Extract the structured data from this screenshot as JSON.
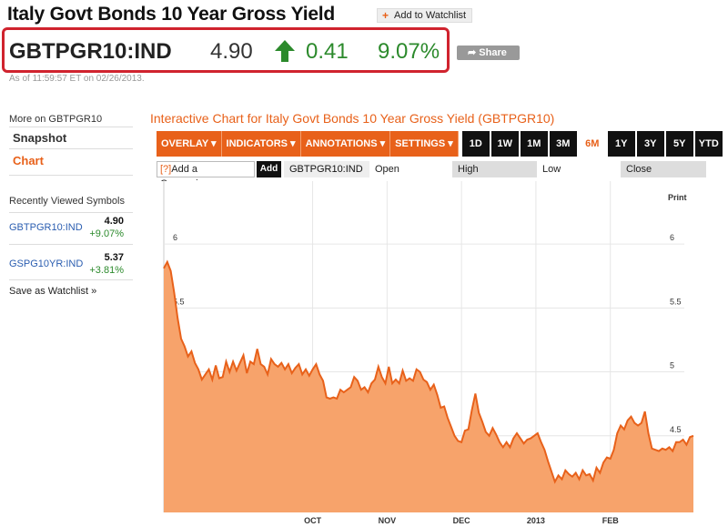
{
  "header": {
    "title": "Italy Govt Bonds 10 Year Gross Yield",
    "watchlist_label": "Add to Watchlist"
  },
  "quote": {
    "ticker": "GBTPGR10:IND",
    "price": "4.90",
    "change": "0.41",
    "percent": "9.07%",
    "share_label": "Share",
    "as_of": "As of 11:59:57 ET on 02/26/2013."
  },
  "sidebar": {
    "more_on": "More on GBTPGR10",
    "items": [
      {
        "label": "Snapshot"
      },
      {
        "label": "Chart"
      }
    ],
    "recent_heading": "Recently Viewed Symbols",
    "recent": [
      {
        "symbol": "GBTPGR10:IND",
        "value": "4.90",
        "change": "+9.07%"
      },
      {
        "symbol": "GSPG10YR:IND",
        "value": "5.37",
        "change": "+3.81%"
      }
    ],
    "save_watchlist": "Save as Watchlist »"
  },
  "chart_panel": {
    "title": "Interactive Chart for Italy Govt Bonds 10 Year Gross Yield (GBTPGR10)",
    "menus": [
      "OVERLAY ▾",
      "INDICATORS ▾",
      "ANNOTATIONS ▾",
      "SETTINGS ▾"
    ],
    "ranges": [
      "1D",
      "1W",
      "1M",
      "3M",
      "6M",
      "1Y",
      "3Y",
      "5Y",
      "YTD"
    ],
    "selected_range": "6M",
    "compare_prefix": "[?]",
    "compare_label": "Add a Comparison",
    "add_label": "Add",
    "symbol": "GBTPGR10:IND",
    "open_label": "Open",
    "high_label": "High",
    "low_label": "Low",
    "close_label": "Close",
    "print_label": "Print"
  },
  "colors": {
    "accent": "#e8611a",
    "up": "#2c8a2c",
    "area_fill": "#f7a36b",
    "highlight": "#d0232e"
  },
  "chart_data": {
    "type": "area",
    "title": "",
    "xlabel": "",
    "ylabel": "",
    "y_ticks": [
      "4.5",
      "5",
      "5.5",
      "6"
    ],
    "ylim": [
      3.9,
      6.4
    ],
    "x_month_labels": [
      "OCT",
      "NOV",
      "DEC",
      "2013",
      "FEB"
    ],
    "x_month_positions": [
      43,
      64.5,
      86,
      107.5,
      129
    ],
    "grid": true,
    "series": [
      {
        "points": [
          [
            0,
            5.81
          ],
          [
            1,
            5.86
          ],
          [
            2,
            5.79
          ],
          [
            3,
            5.62
          ],
          [
            4,
            5.42
          ],
          [
            5,
            5.26
          ],
          [
            6,
            5.2
          ],
          [
            7,
            5.12
          ],
          [
            8,
            5.16
          ],
          [
            9,
            5.07
          ],
          [
            10,
            5.02
          ],
          [
            11,
            4.94
          ],
          [
            12,
            4.98
          ],
          [
            13,
            5.02
          ],
          [
            14,
            4.94
          ],
          [
            15,
            5.05
          ],
          [
            16,
            4.95
          ],
          [
            17,
            4.96
          ],
          [
            18,
            5.08
          ],
          [
            19,
            5.0
          ],
          [
            20,
            5.08
          ],
          [
            21,
            5.01
          ],
          [
            22,
            5.07
          ],
          [
            23,
            5.13
          ],
          [
            24,
            4.99
          ],
          [
            25,
            5.08
          ],
          [
            26,
            5.06
          ],
          [
            27,
            5.18
          ],
          [
            28,
            5.06
          ],
          [
            29,
            5.04
          ],
          [
            30,
            4.98
          ],
          [
            31,
            5.1
          ],
          [
            32,
            5.06
          ],
          [
            33,
            5.04
          ],
          [
            34,
            5.07
          ],
          [
            35,
            5.02
          ],
          [
            36,
            5.06
          ],
          [
            37,
            4.99
          ],
          [
            38,
            5.03
          ],
          [
            39,
            5.06
          ],
          [
            40,
            4.98
          ],
          [
            41,
            5.02
          ],
          [
            42,
            4.97
          ],
          [
            43,
            5.02
          ],
          [
            44,
            5.06
          ],
          [
            45,
            4.98
          ],
          [
            46,
            4.93
          ],
          [
            47,
            4.8
          ],
          [
            48,
            4.79
          ],
          [
            49,
            4.8
          ],
          [
            50,
            4.79
          ],
          [
            51,
            4.86
          ],
          [
            52,
            4.84
          ],
          [
            53,
            4.86
          ],
          [
            54,
            4.88
          ],
          [
            55,
            4.96
          ],
          [
            56,
            4.93
          ],
          [
            57,
            4.86
          ],
          [
            58,
            4.88
          ],
          [
            59,
            4.84
          ],
          [
            60,
            4.91
          ],
          [
            61,
            4.94
          ],
          [
            62,
            5.04
          ],
          [
            63,
            4.96
          ],
          [
            64,
            4.91
          ],
          [
            65,
            5.04
          ],
          [
            66,
            4.91
          ],
          [
            67,
            4.94
          ],
          [
            68,
            4.91
          ],
          [
            69,
            5.01
          ],
          [
            70,
            4.93
          ],
          [
            71,
            4.95
          ],
          [
            72,
            4.93
          ],
          [
            73,
            5.02
          ],
          [
            74,
            5.0
          ],
          [
            75,
            4.94
          ],
          [
            76,
            4.92
          ],
          [
            77,
            4.86
          ],
          [
            78,
            4.9
          ],
          [
            79,
            4.82
          ],
          [
            80,
            4.72
          ],
          [
            81,
            4.73
          ],
          [
            82,
            4.64
          ],
          [
            83,
            4.57
          ],
          [
            84,
            4.5
          ],
          [
            85,
            4.46
          ],
          [
            86,
            4.45
          ],
          [
            87,
            4.54
          ],
          [
            88,
            4.55
          ],
          [
            89,
            4.7
          ],
          [
            90,
            4.83
          ],
          [
            91,
            4.68
          ],
          [
            92,
            4.61
          ],
          [
            93,
            4.53
          ],
          [
            94,
            4.5
          ],
          [
            95,
            4.56
          ],
          [
            96,
            4.51
          ],
          [
            97,
            4.45
          ],
          [
            98,
            4.41
          ],
          [
            99,
            4.45
          ],
          [
            100,
            4.41
          ],
          [
            101,
            4.48
          ],
          [
            102,
            4.52
          ],
          [
            103,
            4.48
          ],
          [
            104,
            4.44
          ],
          [
            105,
            4.47
          ],
          [
            106,
            4.48
          ],
          [
            107,
            4.5
          ],
          [
            108,
            4.52
          ],
          [
            109,
            4.45
          ],
          [
            110,
            4.39
          ],
          [
            111,
            4.3
          ],
          [
            112,
            4.22
          ],
          [
            113,
            4.14
          ],
          [
            114,
            4.19
          ],
          [
            115,
            4.16
          ],
          [
            116,
            4.23
          ],
          [
            117,
            4.2
          ],
          [
            118,
            4.18
          ],
          [
            119,
            4.21
          ],
          [
            120,
            4.16
          ],
          [
            121,
            4.23
          ],
          [
            122,
            4.19
          ],
          [
            123,
            4.2
          ],
          [
            124,
            4.15
          ],
          [
            125,
            4.25
          ],
          [
            126,
            4.21
          ],
          [
            127,
            4.29
          ],
          [
            128,
            4.33
          ],
          [
            129,
            4.32
          ],
          [
            130,
            4.39
          ],
          [
            131,
            4.52
          ],
          [
            132,
            4.58
          ],
          [
            133,
            4.55
          ],
          [
            134,
            4.62
          ],
          [
            135,
            4.65
          ],
          [
            136,
            4.6
          ],
          [
            137,
            4.58
          ],
          [
            138,
            4.6
          ],
          [
            139,
            4.69
          ],
          [
            140,
            4.52
          ],
          [
            141,
            4.4
          ],
          [
            142,
            4.39
          ],
          [
            143,
            4.38
          ],
          [
            144,
            4.4
          ],
          [
            145,
            4.39
          ],
          [
            146,
            4.41
          ],
          [
            147,
            4.38
          ],
          [
            148,
            4.45
          ],
          [
            149,
            4.45
          ],
          [
            150,
            4.47
          ],
          [
            151,
            4.43
          ],
          [
            152,
            4.49
          ],
          [
            153,
            4.5
          ]
        ]
      }
    ]
  }
}
